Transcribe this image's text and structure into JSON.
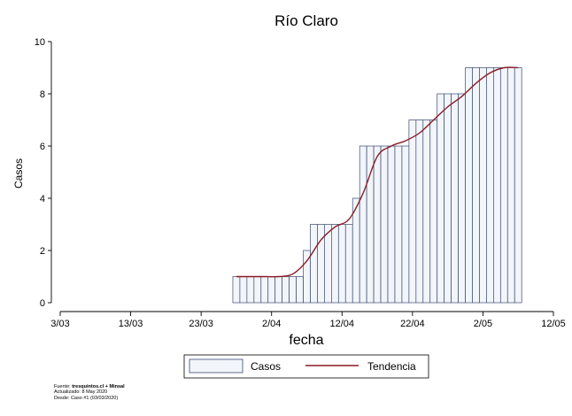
{
  "chart_data": {
    "type": "bar",
    "title": "Río Claro",
    "xlabel": "fecha",
    "ylabel": "Casos",
    "ylim": [
      0,
      10
    ],
    "yticks": [
      0,
      2,
      4,
      6,
      8,
      10
    ],
    "xlim": [
      "2020-03-03",
      "2020-05-12"
    ],
    "xticks": [
      {
        "date": "2020-03-03",
        "label": "3/03"
      },
      {
        "date": "2020-03-13",
        "label": "13/03"
      },
      {
        "date": "2020-03-23",
        "label": "23/03"
      },
      {
        "date": "2020-04-02",
        "label": "2/04"
      },
      {
        "date": "2020-04-12",
        "label": "12/04"
      },
      {
        "date": "2020-04-22",
        "label": "22/04"
      },
      {
        "date": "2020-05-02",
        "label": "2/05"
      },
      {
        "date": "2020-05-12",
        "label": "12/05"
      }
    ],
    "legend_position": "bottom",
    "grid": false,
    "series": [
      {
        "name": "Casos",
        "kind": "bar",
        "color": "#f2f5f9",
        "edge_color": "#3b4a72",
        "x": [
          "2020-03-28",
          "2020-03-29",
          "2020-03-30",
          "2020-03-31",
          "2020-04-01",
          "2020-04-02",
          "2020-04-03",
          "2020-04-04",
          "2020-04-05",
          "2020-04-06",
          "2020-04-07",
          "2020-04-08",
          "2020-04-09",
          "2020-04-10",
          "2020-04-11",
          "2020-04-12",
          "2020-04-13",
          "2020-04-14",
          "2020-04-15",
          "2020-04-16",
          "2020-04-17",
          "2020-04-18",
          "2020-04-19",
          "2020-04-20",
          "2020-04-21",
          "2020-04-22",
          "2020-04-23",
          "2020-04-24",
          "2020-04-25",
          "2020-04-26",
          "2020-04-27",
          "2020-04-28",
          "2020-04-29",
          "2020-04-30",
          "2020-05-01",
          "2020-05-02",
          "2020-05-03",
          "2020-05-04",
          "2020-05-05",
          "2020-05-06",
          "2020-05-07"
        ],
        "values": [
          1,
          1,
          1,
          1,
          1,
          1,
          1,
          1,
          1,
          1,
          2,
          3,
          3,
          3,
          3,
          3,
          3,
          4,
          6,
          6,
          6,
          6,
          6,
          6,
          6,
          7,
          7,
          7,
          7,
          8,
          8,
          8,
          8,
          9,
          9,
          9,
          9,
          9,
          9,
          9,
          9
        ]
      },
      {
        "name": "Tendencia",
        "kind": "line",
        "color": "#8b1a24",
        "x": [
          "2020-03-28",
          "2020-03-30",
          "2020-04-01",
          "2020-04-03",
          "2020-04-05",
          "2020-04-07",
          "2020-04-09",
          "2020-04-11",
          "2020-04-13",
          "2020-04-15",
          "2020-04-17",
          "2020-04-19",
          "2020-04-21",
          "2020-04-23",
          "2020-04-25",
          "2020-04-27",
          "2020-04-29",
          "2020-05-01",
          "2020-05-03",
          "2020-05-05",
          "2020-05-07"
        ],
        "values": [
          1.0,
          1.0,
          1.0,
          1.0,
          1.1,
          1.6,
          2.4,
          2.9,
          3.2,
          4.2,
          5.6,
          6.0,
          6.2,
          6.5,
          7.0,
          7.5,
          7.9,
          8.4,
          8.8,
          9.0,
          9.0
        ]
      }
    ]
  },
  "footer": {
    "line1_prefix": "Fuente: ",
    "line1_bold": "tresquintos.cl + Minsal",
    "line2": "Actualizado: 8 May 2020",
    "line3": "Desde: Caso #1  (03/03/2020)"
  }
}
